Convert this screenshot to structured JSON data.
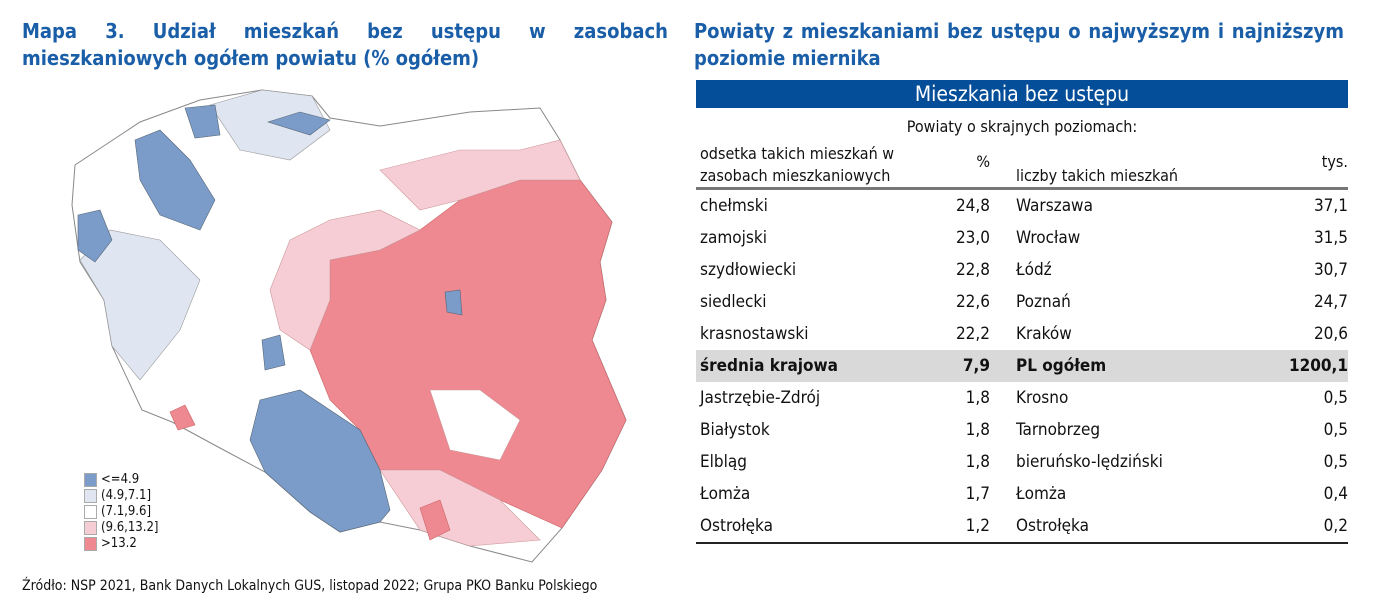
{
  "left_title": "Mapa 3. Udział mieszkań bez ustępu w zasobach mieszkaniowych ogółem powiatu (% ogółem)",
  "right_title": "Powiaty z mieszkaniami bez ustępu o najwyższym i najniższym poziomie miernika",
  "colors": {
    "c1": "#7b9cc8",
    "c2": "#dfe6f1",
    "c3": "#ffffff",
    "c4": "#f6cdd5",
    "c5": "#ee8891",
    "band": "#034d99"
  },
  "legend": [
    "<=4.9",
    "(4.9,7.1]",
    "(7.1,9.6]",
    "(9.6,13.2]",
    ">13.2"
  ],
  "table": {
    "band": "Mieszkania bez ustępu",
    "subtitle": "Powiaty o skrajnych poziomach:",
    "h1": "odsetka takich mieszkań w zasobach mieszkaniowych",
    "h2": "%",
    "h3": "liczby takich mieszkań",
    "h4": "tys.",
    "rows": [
      [
        "chełmski",
        "24,8",
        "Warszawa",
        "37,1"
      ],
      [
        "zamojski",
        "23,0",
        "Wrocław",
        "31,5"
      ],
      [
        "szydłowiecki",
        "22,8",
        "Łódź",
        "30,7"
      ],
      [
        "siedlecki",
        "22,6",
        "Poznań",
        "24,7"
      ],
      [
        "krasnostawski",
        "22,2",
        "Kraków",
        "20,6"
      ],
      [
        "średnia krajowa",
        "7,9",
        "PL ogółem",
        "1200,1"
      ],
      [
        "Jastrzębie-Zdrój",
        "1,8",
        "Krosno",
        "0,5"
      ],
      [
        "Białystok",
        "1,8",
        "Tarnobrzeg",
        "0,5"
      ],
      [
        "Elbląg",
        "1,8",
        "bieruńsko-lędziński",
        "0,5"
      ],
      [
        "Łomża",
        "1,7",
        "Łomża",
        "0,4"
      ],
      [
        "Ostrołęka",
        "1,2",
        "Ostrołęka",
        "0,2"
      ]
    ]
  },
  "source": "Źródło: NSP 2021, Bank Danych Lokalnych GUS, listopad 2022; Grupa PKO Banku Polskiego",
  "chart_data": {
    "type": "choropleth",
    "legend_classes": [
      "<=4.9",
      "(4.9,7.1]",
      "(7.1,9.6]",
      "(9.6,13.2]",
      ">13.2"
    ],
    "legend_placement": "bottom-left"
  }
}
